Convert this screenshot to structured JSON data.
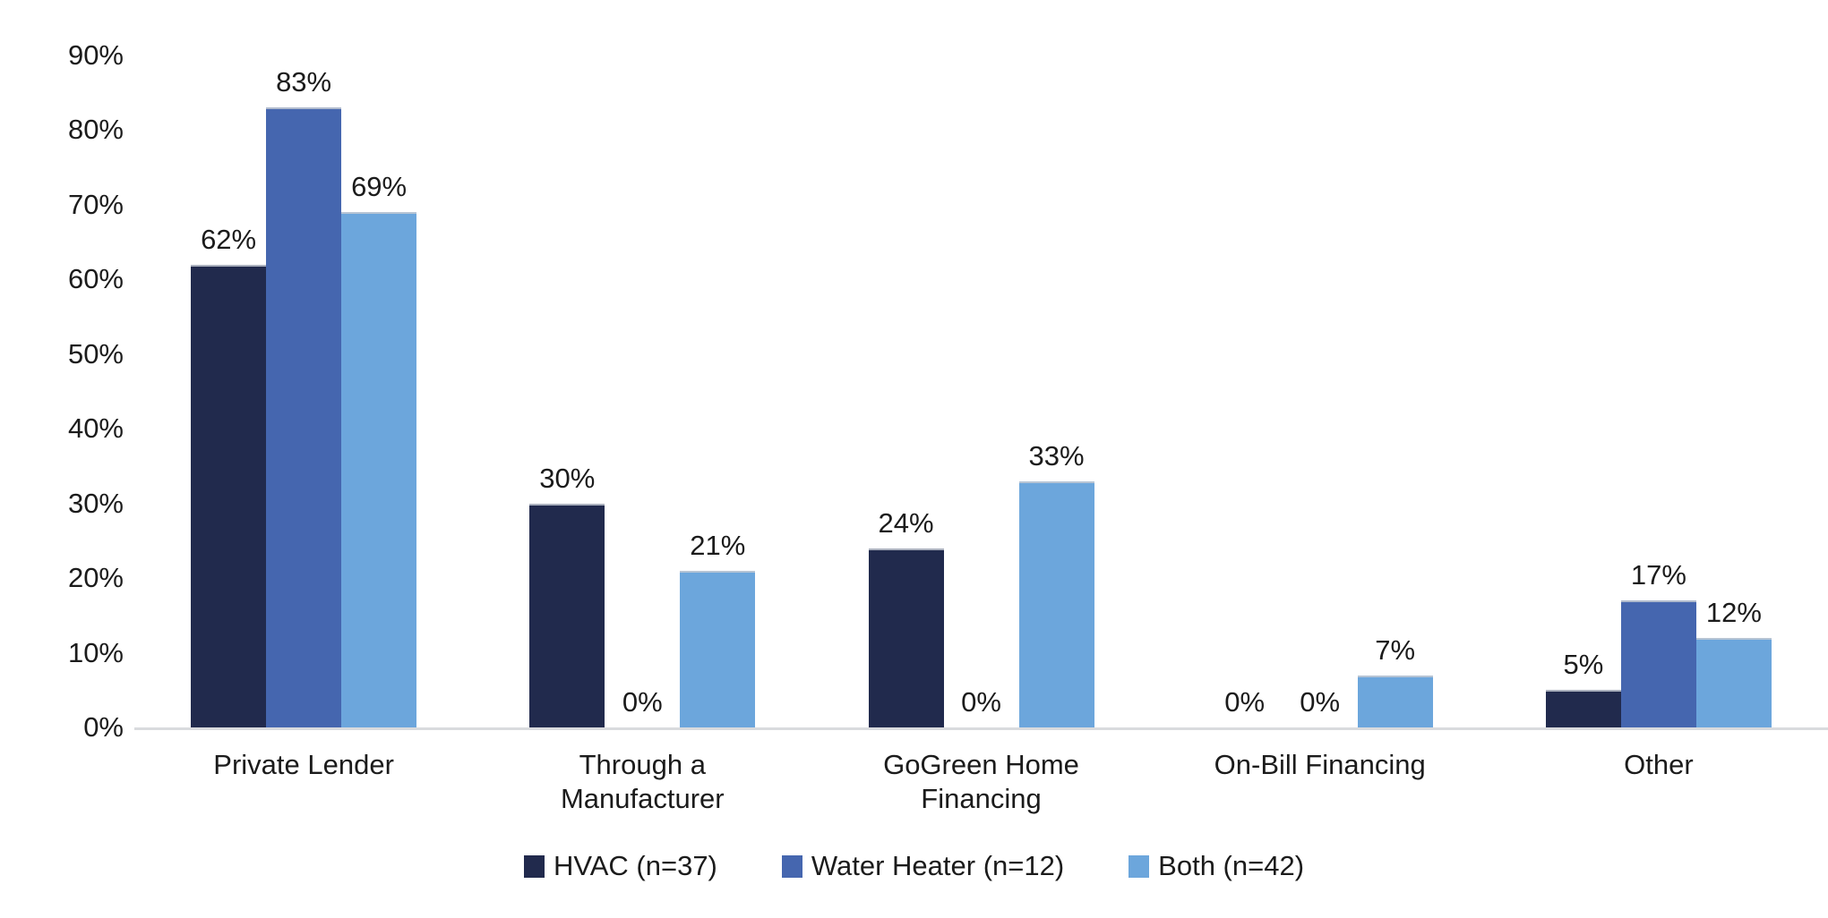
{
  "chart_data": {
    "type": "bar",
    "title": "",
    "categories": [
      "Private Lender",
      "Through a Manufacturer",
      "GoGreen Home Financing",
      "On-Bill Financing",
      "Other"
    ],
    "series": [
      {
        "name": "HVAC (n=37)",
        "color": "#212a4d",
        "values": [
          62,
          30,
          24,
          0,
          5
        ]
      },
      {
        "name": "Water Heater (n=12)",
        "color": "#4566af",
        "values": [
          83,
          0,
          0,
          0,
          17
        ]
      },
      {
        "name": "Both (n=42)",
        "color": "#6ca6dc",
        "values": [
          69,
          21,
          33,
          7,
          12
        ]
      }
    ],
    "data_labels": [
      "62%",
      "83%",
      "69%",
      "30%",
      "0%",
      "21%",
      "24%",
      "0%",
      "33%",
      "0%",
      "0%",
      "7%",
      "5%",
      "17%",
      "12%"
    ],
    "ylabel": "",
    "xlabel": "",
    "ylim": [
      0,
      90
    ],
    "y_tick_labels": [
      "0%",
      "10%",
      "20%",
      "30%",
      "40%",
      "50%",
      "60%",
      "70%",
      "80%",
      "90%"
    ],
    "grid": false,
    "legend_position": "bottom"
  },
  "colors": {
    "background": "#ffffff",
    "axis_line": "#d9dbde",
    "text": "#1b1b1b",
    "bar_top_edge": "#c3c9d2"
  }
}
